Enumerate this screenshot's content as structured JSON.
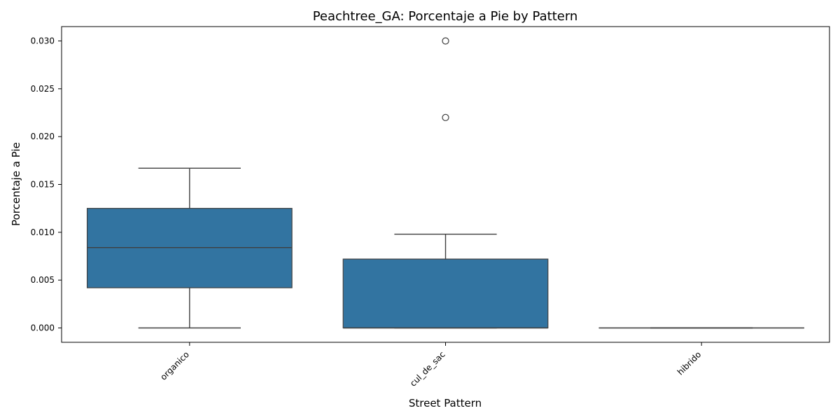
{
  "chart_data": {
    "type": "box",
    "title": "Peachtree_GA: Porcentaje a Pie by Pattern",
    "xlabel": "Street Pattern",
    "ylabel": "Porcentaje a Pie",
    "ylim": [
      -0.0015,
      0.0315
    ],
    "yticks": [
      "0.000",
      "0.005",
      "0.010",
      "0.015",
      "0.020",
      "0.025",
      "0.030"
    ],
    "ytick_values": [
      0.0,
      0.005,
      0.01,
      0.015,
      0.02,
      0.025,
      0.03
    ],
    "categories": [
      "organico",
      "cul_de_sac",
      "hibrido"
    ],
    "boxes": [
      {
        "category": "organico",
        "whisker_low": 0.0,
        "q1": 0.0042,
        "median": 0.0084,
        "q3": 0.0125,
        "whisker_high": 0.0167,
        "outliers": []
      },
      {
        "category": "cul_de_sac",
        "whisker_low": 0.0,
        "q1": 0.0,
        "median": 0.0,
        "q3": 0.0072,
        "whisker_high": 0.0098,
        "outliers": [
          0.022,
          0.03
        ]
      },
      {
        "category": "hibrido",
        "whisker_low": 0.0,
        "q1": 0.0,
        "median": 0.0,
        "q3": 0.0,
        "whisker_high": 0.0,
        "outliers": []
      }
    ],
    "colors": {
      "box_fill": "#3274a1",
      "line": "#3f3f3f",
      "axis": "#000000"
    },
    "grid": false,
    "legend": "none"
  }
}
